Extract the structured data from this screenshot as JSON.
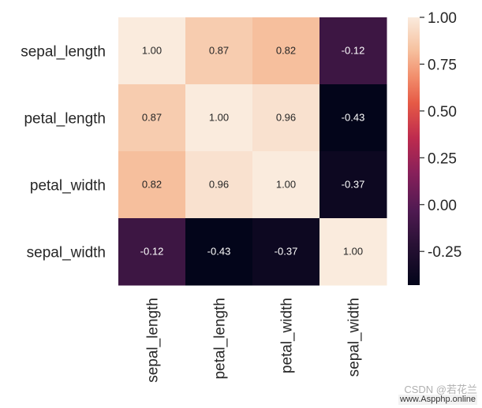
{
  "chart_data": {
    "type": "heatmap",
    "row_labels": [
      "sepal_length",
      "petal_length",
      "petal_width",
      "sepal_width"
    ],
    "col_labels": [
      "sepal_length",
      "petal_length",
      "petal_width",
      "sepal_width"
    ],
    "values": [
      [
        1.0,
        0.87,
        0.82,
        -0.12
      ],
      [
        0.87,
        1.0,
        0.96,
        -0.43
      ],
      [
        0.82,
        0.96,
        1.0,
        -0.37
      ],
      [
        -0.12,
        -0.43,
        -0.37,
        1.0
      ]
    ],
    "annotations": [
      [
        "1.00",
        "0.87",
        "0.82",
        "-0.12"
      ],
      [
        "0.87",
        "1.00",
        "0.96",
        "-0.43"
      ],
      [
        "0.82",
        "0.96",
        "1.00",
        "-0.37"
      ],
      [
        "-0.12",
        "-0.43",
        "-0.37",
        "1.00"
      ]
    ],
    "colormap": "rocket",
    "color_range": [
      -0.43,
      1.0
    ],
    "colorbar_ticks": [
      1.0,
      0.75,
      0.5,
      0.25,
      0.0,
      -0.25
    ],
    "colorbar_tick_labels": [
      "1.00",
      "0.75",
      "0.50",
      "0.25",
      "0.00",
      "-0.25"
    ],
    "title": "",
    "xlabel": "",
    "ylabel": ""
  },
  "watermark": {
    "line1": "CSDN @若花兰",
    "line2": "www.Aspphp.online"
  }
}
